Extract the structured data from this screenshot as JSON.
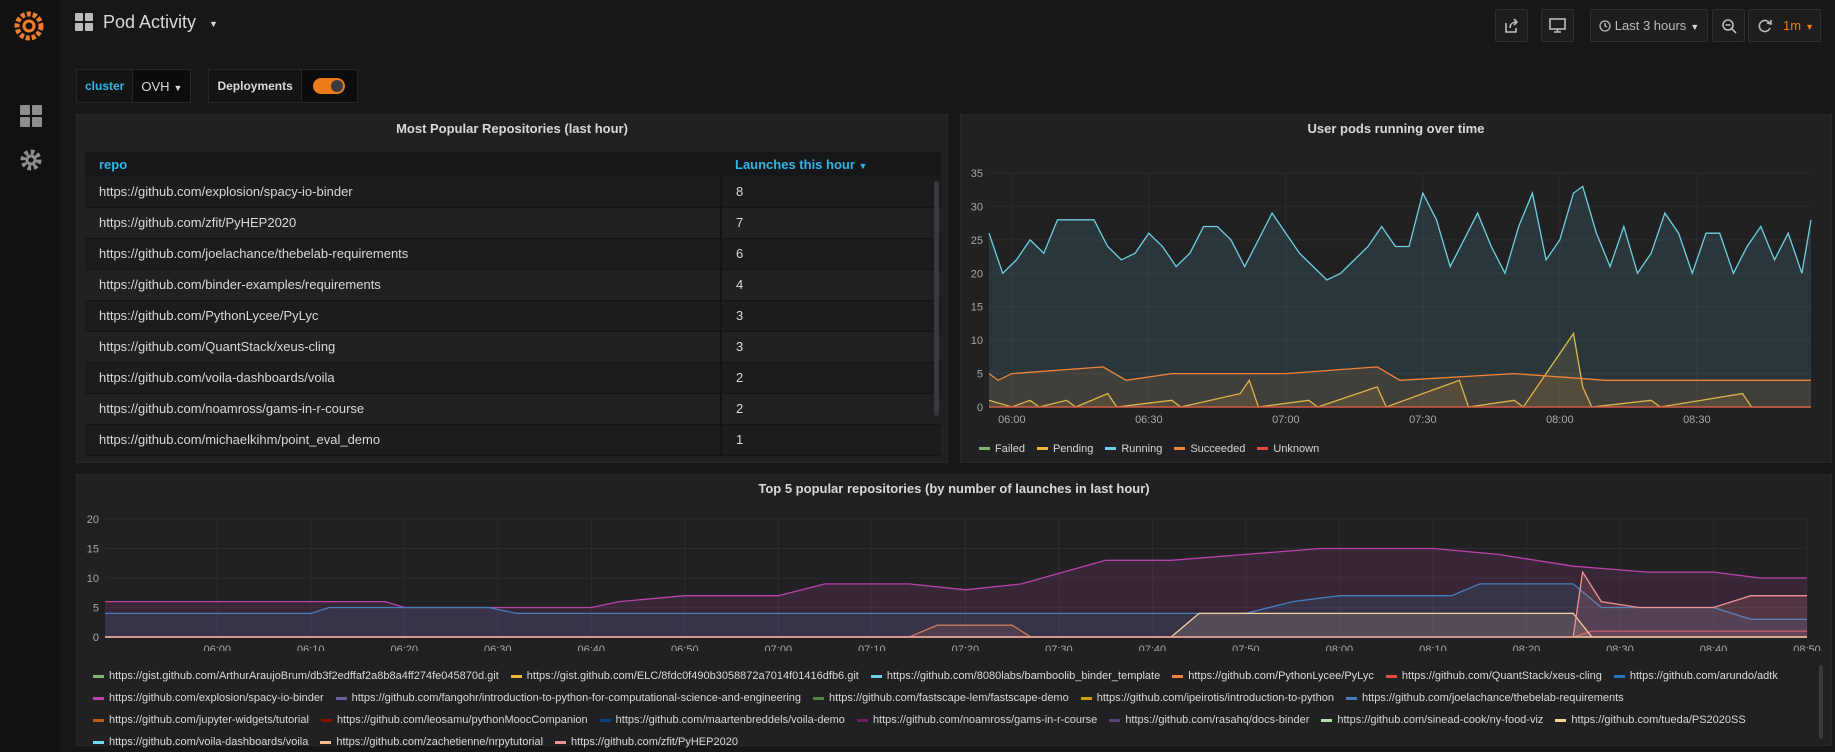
{
  "dashboard": {
    "title": "Pod Activity"
  },
  "toolbar": {
    "time_range_label": "Last 3 hours",
    "refresh_interval": "1m"
  },
  "variables": {
    "cluster": {
      "label": "cluster",
      "value": "OVH"
    },
    "deployments": {
      "label": "Deployments",
      "enabled": true
    }
  },
  "popular_table": {
    "title": "Most Popular Repositories (last hour)",
    "headers": {
      "repo": "repo",
      "launches": "Launches this hour"
    },
    "rows": [
      {
        "repo": "https://github.com/explosion/spacy-io-binder",
        "launches": "8"
      },
      {
        "repo": "https://github.com/zfit/PyHEP2020",
        "launches": "7"
      },
      {
        "repo": "https://github.com/joelachance/thebelab-requirements",
        "launches": "6"
      },
      {
        "repo": "https://github.com/binder-examples/requirements",
        "launches": "4"
      },
      {
        "repo": "https://github.com/PythonLycee/PyLyc",
        "launches": "3"
      },
      {
        "repo": "https://github.com/QuantStack/xeus-cling",
        "launches": "3"
      },
      {
        "repo": "https://github.com/voila-dashboards/voila",
        "launches": "2"
      },
      {
        "repo": "https://github.com/noamross/gams-in-r-course",
        "launches": "2"
      },
      {
        "repo": "https://github.com/michaelkihm/point_eval_demo",
        "launches": "1"
      }
    ]
  },
  "chart_data": [
    {
      "type": "line",
      "title": "User pods running over time",
      "ylim": [
        0,
        35
      ],
      "yticks": [
        "0",
        "5",
        "10",
        "15",
        "20",
        "25",
        "30",
        "35"
      ],
      "xticks": [
        "06:00",
        "06:30",
        "07:00",
        "07:30",
        "08:00",
        "08:30"
      ],
      "x_range_minutes": [
        355,
        535
      ],
      "xtick_minutes": [
        360,
        390,
        420,
        450,
        480,
        510
      ],
      "series": [
        {
          "name": "Failed",
          "color": "#7eb26d",
          "points": [
            [
              355,
              0
            ],
            [
              535,
              0
            ]
          ]
        },
        {
          "name": "Pending",
          "color": "#eab839",
          "points": [
            [
              355,
              1
            ],
            [
              360,
              0
            ],
            [
              364,
              1
            ],
            [
              366,
              0
            ],
            [
              372,
              1
            ],
            [
              374,
              0
            ],
            [
              381,
              2
            ],
            [
              383,
              0
            ],
            [
              395,
              1
            ],
            [
              397,
              0
            ],
            [
              410,
              2
            ],
            [
              412,
              4
            ],
            [
              414,
              0
            ],
            [
              425,
              1
            ],
            [
              427,
              0
            ],
            [
              440,
              3
            ],
            [
              442,
              0
            ],
            [
              458,
              4
            ],
            [
              460,
              0
            ],
            [
              470,
              1
            ],
            [
              472,
              0
            ],
            [
              483,
              11
            ],
            [
              485,
              3
            ],
            [
              487,
              0
            ],
            [
              500,
              1
            ],
            [
              502,
              0
            ],
            [
              520,
              2
            ],
            [
              522,
              0
            ],
            [
              535,
              0
            ]
          ]
        },
        {
          "name": "Running",
          "color": "#6ed0e0",
          "points": [
            [
              355,
              26
            ],
            [
              358,
              20
            ],
            [
              361,
              22
            ],
            [
              364,
              25
            ],
            [
              367,
              23
            ],
            [
              370,
              28
            ],
            [
              375,
              28
            ],
            [
              378,
              28
            ],
            [
              381,
              24
            ],
            [
              384,
              22
            ],
            [
              387,
              23
            ],
            [
              390,
              26
            ],
            [
              393,
              24
            ],
            [
              396,
              21
            ],
            [
              399,
              23
            ],
            [
              402,
              27
            ],
            [
              405,
              27
            ],
            [
              408,
              25
            ],
            [
              411,
              21
            ],
            [
              414,
              25
            ],
            [
              417,
              29
            ],
            [
              420,
              26
            ],
            [
              423,
              23
            ],
            [
              426,
              21
            ],
            [
              429,
              19
            ],
            [
              432,
              20
            ],
            [
              435,
              22
            ],
            [
              438,
              24
            ],
            [
              441,
              27
            ],
            [
              444,
              24
            ],
            [
              447,
              24
            ],
            [
              450,
              32
            ],
            [
              453,
              28
            ],
            [
              456,
              21
            ],
            [
              459,
              25
            ],
            [
              462,
              29
            ],
            [
              465,
              24
            ],
            [
              468,
              20
            ],
            [
              471,
              27
            ],
            [
              474,
              32
            ],
            [
              477,
              22
            ],
            [
              480,
              25
            ],
            [
              483,
              32
            ],
            [
              485,
              33
            ],
            [
              488,
              26
            ],
            [
              491,
              21
            ],
            [
              494,
              27
            ],
            [
              497,
              20
            ],
            [
              500,
              23
            ],
            [
              503,
              29
            ],
            [
              506,
              26
            ],
            [
              509,
              20
            ],
            [
              512,
              26
            ],
            [
              515,
              26
            ],
            [
              518,
              20
            ],
            [
              521,
              24
            ],
            [
              524,
              27
            ],
            [
              527,
              22
            ],
            [
              530,
              26
            ],
            [
              533,
              20
            ],
            [
              535,
              28
            ]
          ]
        },
        {
          "name": "Succeeded",
          "color": "#ef843c",
          "points": [
            [
              355,
              5
            ],
            [
              357,
              4
            ],
            [
              360,
              5
            ],
            [
              380,
              6
            ],
            [
              385,
              4
            ],
            [
              395,
              5
            ],
            [
              420,
              5
            ],
            [
              440,
              6
            ],
            [
              445,
              4
            ],
            [
              470,
              5
            ],
            [
              490,
              4
            ],
            [
              535,
              4
            ]
          ]
        },
        {
          "name": "Unknown",
          "color": "#e24d42",
          "points": [
            [
              355,
              0
            ],
            [
              535,
              0
            ]
          ]
        }
      ],
      "legend_position": "bottom-left"
    },
    {
      "type": "area",
      "title": "Top 5 popular repositories (by number of launches in last hour)",
      "ylim": [
        0,
        20
      ],
      "yticks": [
        "0",
        "5",
        "10",
        "15",
        "20"
      ],
      "x_range_minutes": [
        348,
        530
      ],
      "xtick_minutes": [
        360,
        370,
        380,
        390,
        400,
        410,
        420,
        430,
        440,
        450,
        460,
        470,
        480,
        490,
        500,
        510,
        520,
        530
      ],
      "xticks": [
        "06:00",
        "06:10",
        "06:20",
        "06:30",
        "06:40",
        "06:50",
        "07:00",
        "07:10",
        "07:20",
        "07:30",
        "07:40",
        "07:50",
        "08:00",
        "08:10",
        "08:20",
        "08:30",
        "08:40",
        "08:50"
      ],
      "series": [
        {
          "name": "https://gist.github.com/ArthurAraujoBrum/db3f2edffaf2a8b8a4ff274fe045870d.git",
          "color": "#7eb26d",
          "points": [
            [
              348,
              0
            ],
            [
              530,
              0
            ]
          ]
        },
        {
          "name": "https://gist.github.com/ELC/8fdc0f490b3058872a7014f01416dfb6.git",
          "color": "#eab839",
          "points": [
            [
              348,
              0
            ],
            [
              530,
              0
            ]
          ]
        },
        {
          "name": "https://github.com/8080labs/bamboolib_binder_template",
          "color": "#6ed0e0",
          "points": [
            [
              348,
              0
            ],
            [
              530,
              0
            ]
          ]
        },
        {
          "name": "https://github.com/PythonLycee/PyLyc",
          "color": "#ef843c",
          "points": [
            [
              348,
              0
            ],
            [
              434,
              0
            ],
            [
              437,
              2
            ],
            [
              445,
              2
            ],
            [
              447,
              0
            ],
            [
              530,
              0
            ]
          ]
        },
        {
          "name": "https://github.com/QuantStack/xeus-cling",
          "color": "#e24d42",
          "points": [
            [
              348,
              0
            ],
            [
              505,
              0
            ],
            [
              507,
              1
            ],
            [
              530,
              1
            ]
          ]
        },
        {
          "name": "https://github.com/arundo/adtk",
          "color": "#1f78c1",
          "points": [
            [
              348,
              0
            ],
            [
              530,
              0
            ]
          ]
        },
        {
          "name": "https://github.com/explosion/spacy-io-binder",
          "color": "#ba43a9",
          "points": [
            [
              348,
              6
            ],
            [
              378,
              6
            ],
            [
              380,
              5
            ],
            [
              400,
              5
            ],
            [
              403,
              6
            ],
            [
              410,
              7
            ],
            [
              420,
              7
            ],
            [
              425,
              9
            ],
            [
              434,
              9
            ],
            [
              440,
              8
            ],
            [
              446,
              9
            ],
            [
              455,
              13
            ],
            [
              462,
              13
            ],
            [
              470,
              14
            ],
            [
              478,
              15
            ],
            [
              490,
              15
            ],
            [
              497,
              14
            ],
            [
              505,
              12
            ],
            [
              513,
              11
            ],
            [
              520,
              11
            ],
            [
              525,
              10
            ],
            [
              530,
              10
            ]
          ]
        },
        {
          "name": "https://github.com/fangohr/introduction-to-python-for-computational-science-and-engineering",
          "color": "#705da0",
          "points": [
            [
              348,
              0
            ],
            [
              530,
              0
            ]
          ]
        },
        {
          "name": "https://github.com/fastscape-lem/fastscape-demo",
          "color": "#508642",
          "points": [
            [
              348,
              0
            ],
            [
              530,
              0
            ]
          ]
        },
        {
          "name": "https://github.com/ipeirotis/introduction-to-python",
          "color": "#cca300",
          "points": [
            [
              348,
              0
            ],
            [
              530,
              0
            ]
          ]
        },
        {
          "name": "https://github.com/joelachance/thebelab-requirements",
          "color": "#447ebc",
          "points": [
            [
              348,
              4
            ],
            [
              370,
              4
            ],
            [
              372,
              5
            ],
            [
              389,
              5
            ],
            [
              392,
              4
            ],
            [
              470,
              4
            ],
            [
              475,
              6
            ],
            [
              480,
              7
            ],
            [
              492,
              7
            ],
            [
              495,
              9
            ],
            [
              505,
              9
            ],
            [
              508,
              5
            ],
            [
              520,
              5
            ],
            [
              524,
              3
            ],
            [
              530,
              3
            ]
          ]
        },
        {
          "name": "https://github.com/jupyter-widgets/tutorial",
          "color": "#c15c17",
          "points": [
            [
              348,
              0
            ],
            [
              530,
              0
            ]
          ]
        },
        {
          "name": "https://github.com/leosamu/pythonMoocCompanion",
          "color": "#890f02",
          "points": [
            [
              348,
              0
            ],
            [
              530,
              0
            ]
          ]
        },
        {
          "name": "https://github.com/maartenbreddels/voila-demo",
          "color": "#0a437c",
          "points": [
            [
              348,
              0
            ],
            [
              530,
              0
            ]
          ]
        },
        {
          "name": "https://github.com/noamross/gams-in-r-course",
          "color": "#6d1f62",
          "points": [
            [
              348,
              0
            ],
            [
              530,
              0
            ]
          ]
        },
        {
          "name": "https://github.com/rasahq/docs-binder",
          "color": "#584477",
          "points": [
            [
              348,
              0
            ],
            [
              530,
              0
            ]
          ]
        },
        {
          "name": "https://github.com/sinead-cook/ny-food-viz",
          "color": "#b7dbab",
          "points": [
            [
              348,
              0
            ],
            [
              530,
              0
            ]
          ]
        },
        {
          "name": "https://github.com/tueda/PS2020SS",
          "color": "#f4d598",
          "points": [
            [
              348,
              0
            ],
            [
              462,
              0
            ],
            [
              465,
              4
            ],
            [
              505,
              4
            ],
            [
              507,
              0
            ],
            [
              530,
              0
            ]
          ]
        },
        {
          "name": "https://github.com/voila-dashboards/voila",
          "color": "#70dbed",
          "points": [
            [
              348,
              0
            ],
            [
              530,
              0
            ]
          ]
        },
        {
          "name": "https://github.com/zachetienne/nrpytutorial",
          "color": "#f9ba8f",
          "points": [
            [
              348,
              0
            ],
            [
              530,
              0
            ]
          ]
        },
        {
          "name": "https://github.com/zfit/PyHEP2020",
          "color": "#f29191",
          "points": [
            [
              348,
              0
            ],
            [
              505,
              0
            ],
            [
              506,
              11
            ],
            [
              508,
              6
            ],
            [
              512,
              5
            ],
            [
              520,
              5
            ],
            [
              524,
              7
            ],
            [
              530,
              7
            ]
          ]
        }
      ],
      "legend_position": "bottom"
    }
  ]
}
